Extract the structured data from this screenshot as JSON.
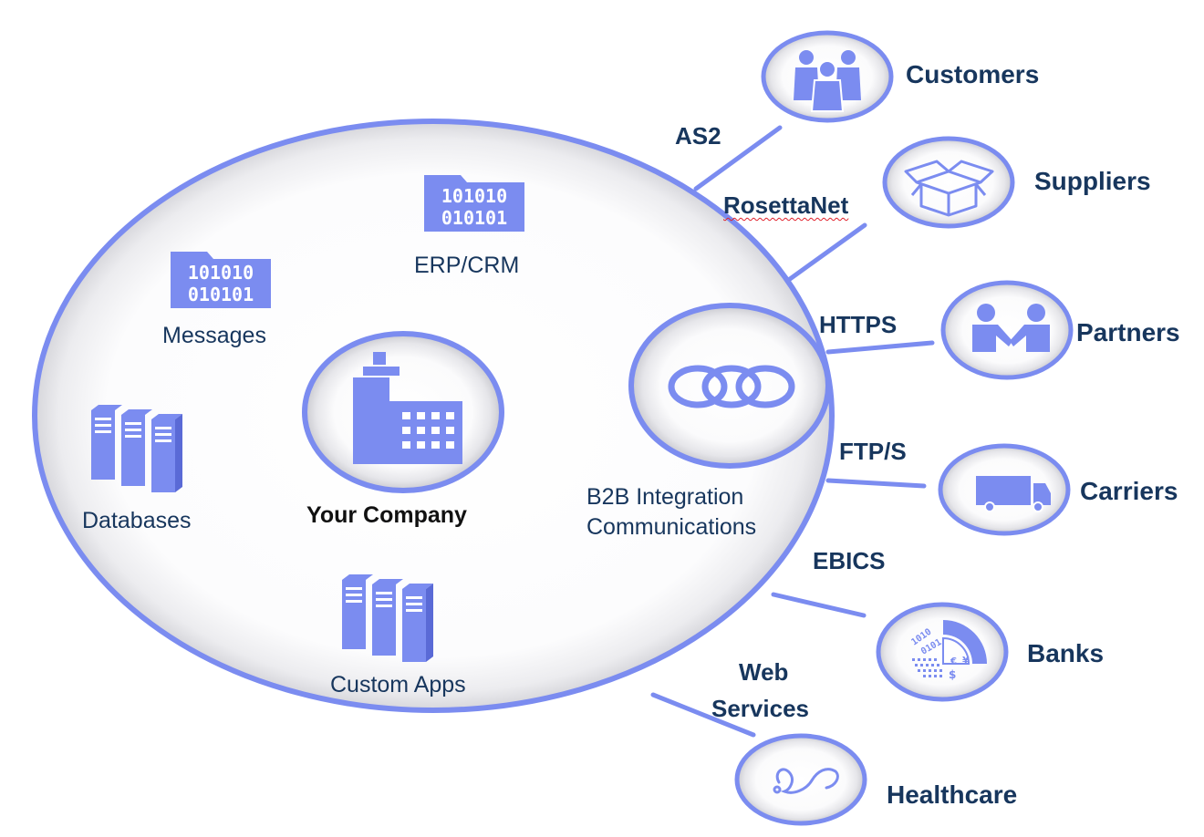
{
  "colors": {
    "accent": "#7b8cf0",
    "icon": "#7b8cf0",
    "text_dark": "#17365d",
    "text_black": "#111111",
    "spellcheck": "#e0202a"
  },
  "company": {
    "label": "Your Company",
    "icon": "building-icon"
  },
  "internal_systems": {
    "erp": {
      "label": "ERP/CRM",
      "bits_line1": "101010",
      "bits_line2": "010101",
      "icon": "binary-folder-icon"
    },
    "messages": {
      "label": "Messages",
      "bits_line1": "101010",
      "bits_line2": "010101",
      "icon": "binary-folder-icon"
    },
    "databases": {
      "label": "Databases",
      "icon": "server-rack-icon"
    },
    "custom_apps": {
      "label": "Custom Apps",
      "icon": "server-rack-icon"
    }
  },
  "hub": {
    "line1": "B2B Integration",
    "line2": "Communications",
    "icon": "linked-rings-icon"
  },
  "protocols": {
    "as2": "AS2",
    "rosettanet": "RosettaNet",
    "https": "HTTPS",
    "ftps": "FTP/S",
    "ebics": "EBICS",
    "web_services_line1": "Web",
    "web_services_line2": "Services"
  },
  "partners": {
    "customers": {
      "label": "Customers",
      "icon": "people-group-icon"
    },
    "suppliers": {
      "label": "Suppliers",
      "icon": "open-box-icon"
    },
    "partners": {
      "label": "Partners",
      "icon": "handshake-icon"
    },
    "carriers": {
      "label": "Carriers",
      "icon": "truck-icon"
    },
    "banks": {
      "label": "Banks",
      "icon": "currency-data-icon"
    },
    "healthcare": {
      "label": "Healthcare",
      "icon": "stethoscope-icon"
    }
  }
}
